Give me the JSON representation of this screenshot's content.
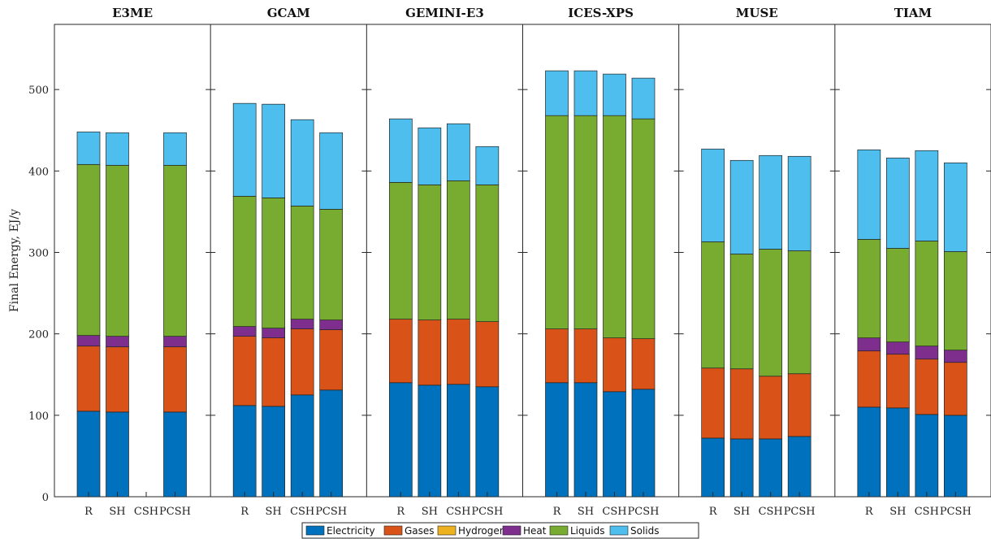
{
  "chart_data": {
    "type": "bar",
    "stacked": true,
    "ylabel": "Final Energy, EJ/y",
    "ylim": [
      0,
      580
    ],
    "yticks": [
      0,
      100,
      200,
      300,
      400,
      500
    ],
    "scenarios": [
      "R",
      "SH",
      "CSH",
      "PCSH"
    ],
    "legend_position": "bottom",
    "series": [
      {
        "name": "Electricity",
        "color": "#0072BD"
      },
      {
        "name": "Gases",
        "color": "#D95319"
      },
      {
        "name": "Hydrogen",
        "color": "#EDB120"
      },
      {
        "name": "Heat",
        "color": "#7E2F8E"
      },
      {
        "name": "Liquids",
        "color": "#77AC30"
      },
      {
        "name": "Solids",
        "color": "#4DBEEE"
      }
    ],
    "panels": [
      {
        "model": "E3ME",
        "values": [
          [
            105,
            80,
            0,
            13,
            210,
            40
          ],
          [
            104,
            80,
            0,
            13,
            210,
            40
          ],
          null,
          [
            104,
            80,
            0,
            13,
            210,
            40
          ]
        ]
      },
      {
        "model": "GCAM",
        "values": [
          [
            112,
            85,
            0,
            12,
            160,
            114
          ],
          [
            111,
            84,
            0,
            12,
            160,
            115
          ],
          [
            125,
            81,
            0,
            12,
            139,
            106
          ],
          [
            131,
            74,
            0,
            12,
            136,
            94
          ]
        ]
      },
      {
        "model": "GEMINI-E3",
        "values": [
          [
            140,
            78,
            0,
            0,
            168,
            78
          ],
          [
            137,
            80,
            0,
            0,
            166,
            70
          ],
          [
            138,
            80,
            0,
            0,
            170,
            70
          ],
          [
            135,
            80,
            0,
            0,
            168,
            47
          ]
        ]
      },
      {
        "model": "ICES-XPS",
        "values": [
          [
            140,
            66,
            0,
            0,
            262,
            55
          ],
          [
            140,
            66,
            0,
            0,
            262,
            55
          ],
          [
            129,
            66,
            0,
            0,
            273,
            51
          ],
          [
            132,
            62,
            0,
            0,
            270,
            50
          ]
        ]
      },
      {
        "model": "MUSE",
        "values": [
          [
            72,
            86,
            0,
            0,
            155,
            114
          ],
          [
            71,
            86,
            0,
            0,
            141,
            115
          ],
          [
            71,
            77,
            0,
            0,
            156,
            115
          ],
          [
            74,
            77,
            0,
            0,
            151,
            116
          ]
        ]
      },
      {
        "model": "TIAM",
        "values": [
          [
            110,
            69,
            0,
            16,
            121,
            110
          ],
          [
            109,
            66,
            0,
            15,
            115,
            111
          ],
          [
            101,
            68,
            0,
            16,
            129,
            111
          ],
          [
            100,
            65,
            0,
            15,
            121,
            109
          ]
        ]
      }
    ]
  }
}
